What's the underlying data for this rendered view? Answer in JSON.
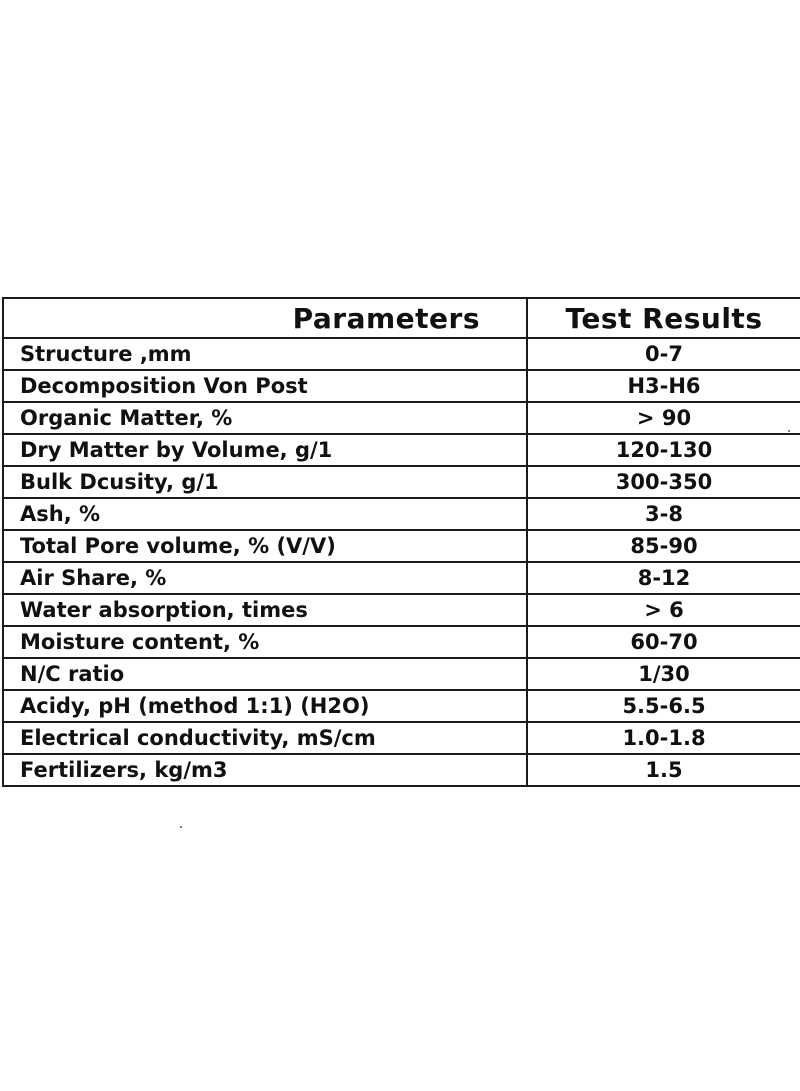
{
  "table": {
    "headers": [
      "Parameters",
      "Test Results"
    ],
    "rows": [
      {
        "parameter": "Structure ,mm",
        "result": "0-7"
      },
      {
        "parameter": "Decomposition Von Post",
        "result": "H3-H6"
      },
      {
        "parameter": "Organic Matter, %",
        "result": "> 90"
      },
      {
        "parameter": "Dry Matter by Volume, g/1",
        "result": "120-130"
      },
      {
        "parameter": "Bulk Dcusity, g/1",
        "result": "300-350"
      },
      {
        "parameter": "Ash, %",
        "result": "3-8"
      },
      {
        "parameter": "Total Pore volume, % (V/V)",
        "result": "85-90"
      },
      {
        "parameter": "Air Share, %",
        "result": "8-12"
      },
      {
        "parameter": "Water absorption, times",
        "result": "> 6"
      },
      {
        "parameter": "Moisture content, %",
        "result": "60-70"
      },
      {
        "parameter": "N/C ratio",
        "result": "1/30"
      },
      {
        "parameter": "Acidy, pH (method 1:1) (H2O)",
        "result": "5.5-6.5"
      },
      {
        "parameter": "Electrical conductivity, mS/cm",
        "result": "1.0-1.8"
      },
      {
        "parameter": "Fertilizers, kg/m3",
        "result": "1.5"
      }
    ]
  }
}
